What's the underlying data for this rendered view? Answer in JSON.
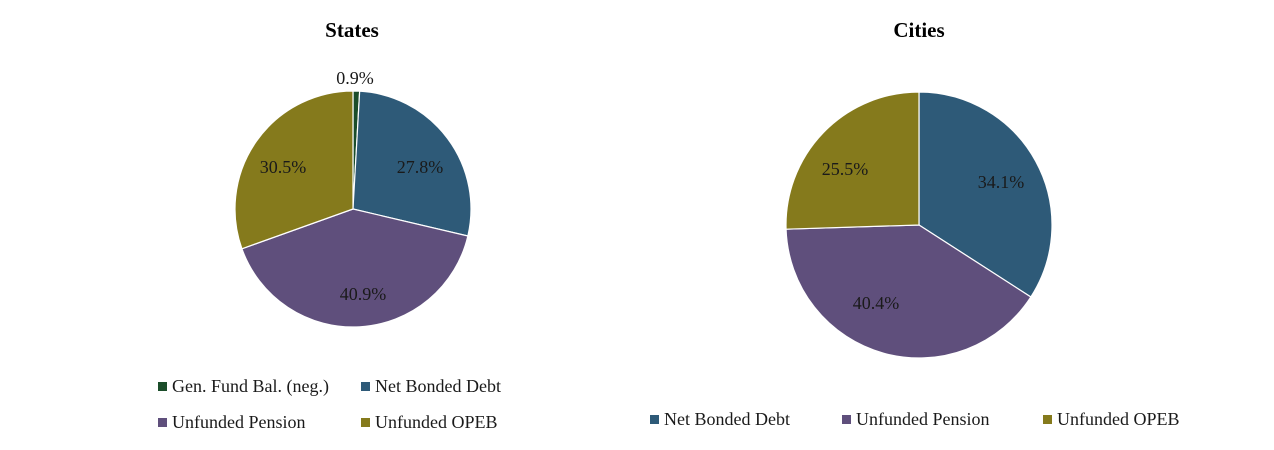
{
  "chart_data": [
    {
      "type": "pie",
      "title": "States",
      "slices": [
        {
          "label": "Gen. Fund Bal. (neg.)",
          "value": 0.9,
          "display": "0.9%",
          "color": "#1b4d2a"
        },
        {
          "label": "Net Bonded Debt",
          "value": 27.8,
          "display": "27.8%",
          "color": "#2e5a78"
        },
        {
          "label": "Unfunded Pension",
          "value": 40.9,
          "display": "40.9%",
          "color": "#5f4f7c"
        },
        {
          "label": "Unfunded OPEB",
          "value": 30.5,
          "display": "30.5%",
          "color": "#857a1c"
        }
      ],
      "legend": [
        "Gen. Fund Bal. (neg.)",
        "Net Bonded Debt",
        "Unfunded Pension",
        "Unfunded OPEB"
      ]
    },
    {
      "type": "pie",
      "title": "Cities",
      "slices": [
        {
          "label": "Net Bonded Debt",
          "value": 34.1,
          "display": "34.1%",
          "color": "#2e5a78"
        },
        {
          "label": "Unfunded Pension",
          "value": 40.4,
          "display": "40.4%",
          "color": "#5f4f7c"
        },
        {
          "label": "Unfunded OPEB",
          "value": 25.5,
          "display": "25.5%",
          "color": "#857a1c"
        }
      ],
      "legend": [
        "Net Bonded Debt",
        "Unfunded Pension",
        "Unfunded OPEB"
      ]
    }
  ]
}
